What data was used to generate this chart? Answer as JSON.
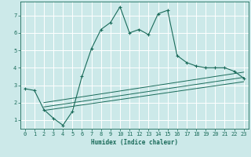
{
  "xlabel": "Humidex (Indice chaleur)",
  "bg_color": "#cce9e9",
  "grid_color": "#ffffff",
  "line_color": "#1a6b5a",
  "xlim": [
    -0.5,
    23.5
  ],
  "ylim": [
    0.5,
    7.8
  ],
  "xticks": [
    0,
    1,
    2,
    3,
    4,
    5,
    6,
    7,
    8,
    9,
    10,
    11,
    12,
    13,
    14,
    15,
    16,
    17,
    18,
    19,
    20,
    21,
    22,
    23
  ],
  "yticks": [
    1,
    2,
    3,
    4,
    5,
    6,
    7
  ],
  "curve1_x": [
    0,
    1,
    2,
    3,
    4,
    5,
    6,
    7,
    8,
    9,
    10,
    11,
    12,
    13,
    14,
    15,
    16,
    17,
    18,
    19,
    20,
    21,
    22,
    23
  ],
  "curve1_y": [
    2.8,
    2.7,
    1.6,
    1.1,
    0.7,
    1.5,
    3.5,
    5.1,
    6.2,
    6.6,
    7.5,
    6.0,
    6.2,
    5.9,
    7.1,
    7.3,
    4.7,
    4.3,
    4.1,
    4.0,
    4.0,
    4.0,
    3.8,
    3.4
  ],
  "line1_x": [
    2,
    23
  ],
  "line1_y": [
    1.55,
    3.2
  ],
  "line2_x": [
    2,
    23
  ],
  "line2_y": [
    1.75,
    3.45
  ],
  "line3_x": [
    2,
    23
  ],
  "line3_y": [
    2.0,
    3.75
  ],
  "xlabel_fontsize": 5.5,
  "tick_fontsize": 5.0
}
